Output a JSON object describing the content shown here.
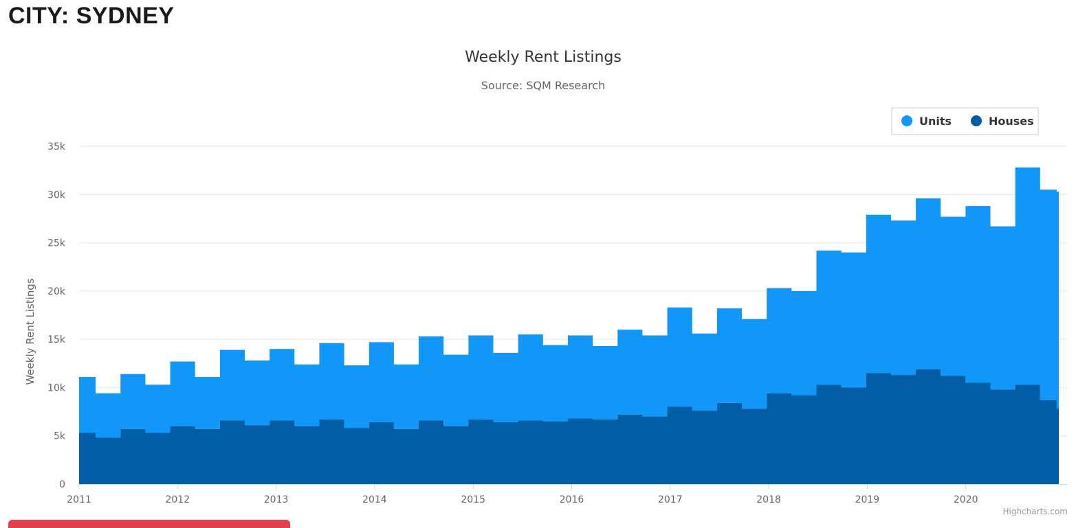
{
  "page": {
    "title": "CITY: SYDNEY"
  },
  "credits": "Highcharts.com",
  "chart_data": {
    "type": "area",
    "stacked": true,
    "title": "Weekly Rent Listings",
    "subtitle": "Source: SQM Research",
    "ylabel": "Weekly Rent Listings",
    "ylim": [
      0,
      35000
    ],
    "yticks": [
      0,
      5000,
      10000,
      15000,
      20000,
      25000,
      30000,
      35000
    ],
    "ytick_labels": [
      "0",
      "5k",
      "10k",
      "15k",
      "20k",
      "25k",
      "30k",
      "35k"
    ],
    "xlim": [
      "2011-01",
      "2020-11"
    ],
    "xticks": [
      "2011",
      "2012",
      "2013",
      "2014",
      "2015",
      "2016",
      "2017",
      "2018",
      "2019",
      "2020"
    ],
    "grid": true,
    "legend": "top-right",
    "colors": {
      "Units": "#1097f7",
      "Houses": "#005da6"
    },
    "x": [
      "2011-01",
      "2011-03",
      "2011-06",
      "2011-09",
      "2011-12",
      "2012-03",
      "2012-06",
      "2012-09",
      "2012-12",
      "2013-03",
      "2013-06",
      "2013-09",
      "2013-12",
      "2014-03",
      "2014-06",
      "2014-09",
      "2014-12",
      "2015-03",
      "2015-06",
      "2015-09",
      "2015-12",
      "2016-03",
      "2016-06",
      "2016-09",
      "2016-12",
      "2017-03",
      "2017-06",
      "2017-09",
      "2017-12",
      "2018-03",
      "2018-06",
      "2018-09",
      "2018-12",
      "2019-03",
      "2019-06",
      "2019-09",
      "2019-12",
      "2020-03",
      "2020-06",
      "2020-09",
      "2020-11"
    ],
    "series": [
      {
        "name": "Houses",
        "values": [
          5300,
          4800,
          5700,
          5300,
          6000,
          5700,
          6600,
          6100,
          6600,
          6000,
          6700,
          5800,
          6400,
          5700,
          6600,
          6000,
          6700,
          6400,
          6600,
          6500,
          6800,
          6700,
          7200,
          7000,
          8000,
          7600,
          8400,
          7800,
          9400,
          9200,
          10300,
          10000,
          11500,
          11300,
          11900,
          11200,
          10500,
          9800,
          10300,
          8700,
          7800
        ]
      },
      {
        "name": "Units",
        "values": [
          5800,
          4600,
          5700,
          5000,
          6700,
          5400,
          7300,
          6700,
          7400,
          6400,
          7900,
          6500,
          8300,
          6700,
          8700,
          7400,
          8700,
          7200,
          8900,
          7900,
          8600,
          7600,
          8800,
          8400,
          10300,
          8000,
          9800,
          9300,
          10900,
          10800,
          13900,
          14000,
          16400,
          16000,
          17700,
          16500,
          18300,
          16900,
          22500,
          21800,
          22500
        ]
      }
    ]
  }
}
